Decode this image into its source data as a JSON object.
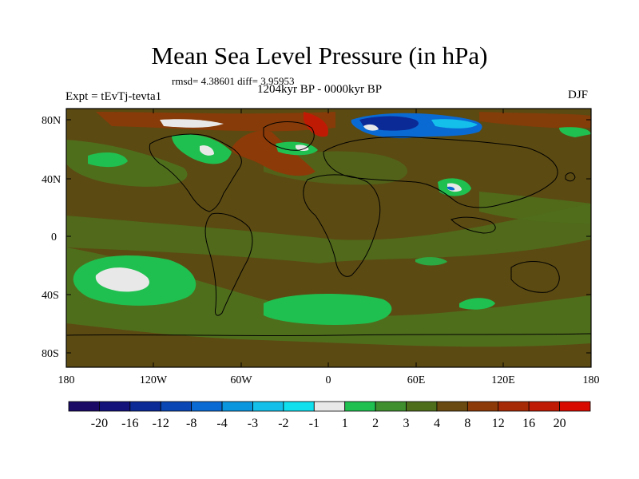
{
  "title": "Mean Sea Level Pressure (in hPa)",
  "stats": "rmsd= 4.38601  diff= 3.95953",
  "period": "1204kyr BP - 0000kyr BP",
  "experiment": "Expt = tEvTj-tevta1",
  "season": "DJF",
  "axes": {
    "lat_labels": [
      "80N",
      "40N",
      "0",
      "40S",
      "80S"
    ],
    "lon_labels": [
      "180",
      "120W",
      "60W",
      "0",
      "60E",
      "120E",
      "180"
    ]
  },
  "colorbar": {
    "labels": [
      "-20",
      "-16",
      "-12",
      "-8",
      "-4",
      "-3",
      "-2",
      "-1",
      "1",
      "2",
      "3",
      "4",
      "8",
      "12",
      "16",
      "20"
    ],
    "colors": [
      "#1a0a66",
      "#12127a",
      "#0b2a96",
      "#0a47b4",
      "#0a6ad4",
      "#0a96de",
      "#14c0ea",
      "#10e0ee",
      "#e8e8e8",
      "#20c050",
      "#3f8f2e",
      "#4f6e1c",
      "#6a4a10",
      "#8c3a08",
      "#a62a06",
      "#bf1b04",
      "#d80a00"
    ]
  },
  "colors": {
    "field_base": "#5b4a12",
    "field_greenish": "#4f6e1c",
    "positive_anomaly": "#8c3a08",
    "negative_anomaly": "#0a6ad4"
  }
}
